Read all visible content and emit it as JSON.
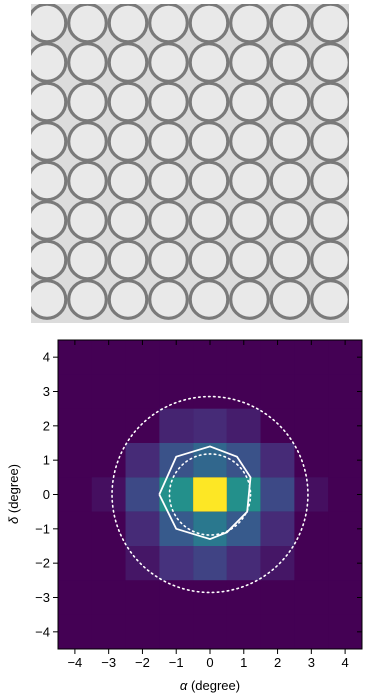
{
  "image": {
    "description_colors": {
      "background": "#dcdcdc",
      "ring": "#7a7a7a",
      "fill": "#e9e9e9"
    },
    "grid": {
      "rows": 8,
      "cols": 8
    }
  },
  "chart_data": {
    "type": "heatmap",
    "xlabel_symbol": "α",
    "xlabel_unit": " (degree)",
    "ylabel_symbol": "δ",
    "ylabel_unit": " (degree)",
    "xlim": [
      -4.5,
      4.5
    ],
    "ylim": [
      -4.5,
      4.5
    ],
    "xticks": [
      -4,
      -3,
      -2,
      -1,
      0,
      1,
      2,
      3,
      4
    ],
    "yticks": [
      -4,
      -3,
      -2,
      -1,
      0,
      1,
      2,
      3,
      4
    ],
    "cell_size": 1,
    "cell_centers": [
      -4,
      -3,
      -2,
      -1,
      0,
      1,
      2,
      3,
      4
    ],
    "values_rows_top_to_bottom": [
      [
        0,
        0,
        0,
        0,
        0,
        0,
        0,
        0,
        0
      ],
      [
        0,
        0,
        0,
        0,
        0,
        0,
        0,
        0,
        0
      ],
      [
        0,
        0,
        0,
        0.1,
        0.12,
        0.08,
        0,
        0,
        0
      ],
      [
        0,
        0,
        0.12,
        0.25,
        0.33,
        0.25,
        0.12,
        0,
        0
      ],
      [
        0,
        0.04,
        0.22,
        0.5,
        1.0,
        0.5,
        0.22,
        0.04,
        0
      ],
      [
        0,
        0,
        0.12,
        0.28,
        0.4,
        0.28,
        0.12,
        0,
        0
      ],
      [
        0,
        0,
        0.06,
        0.14,
        0.2,
        0.12,
        0.06,
        0,
        0
      ],
      [
        0,
        0,
        0,
        0,
        0,
        0,
        0,
        0,
        0
      ],
      [
        0,
        0,
        0,
        0,
        0,
        0,
        0,
        0,
        0
      ]
    ],
    "colormap": [
      "#440154",
      "#46337e",
      "#365c8d",
      "#277f8e",
      "#1fa187",
      "#4ac16d",
      "#a0da39",
      "#fde725"
    ],
    "overlays": {
      "outer_circle": {
        "cx": 0,
        "cy": 0,
        "r": 2.9,
        "style": "dotted",
        "color": "#ffffff"
      },
      "inner_circle": {
        "cx": 0,
        "cy": 0,
        "r": 1.2,
        "style": "dotted",
        "color": "#ffffff"
      },
      "contour": {
        "style": "solid",
        "color": "#ffffff",
        "points": [
          [
            -1.5,
            0.0
          ],
          [
            -1.0,
            1.1
          ],
          [
            0.0,
            1.4
          ],
          [
            0.8,
            1.1
          ],
          [
            1.2,
            0.5
          ],
          [
            1.1,
            -0.5
          ],
          [
            0.5,
            -1.1
          ],
          [
            0.0,
            -1.3
          ],
          [
            -1.0,
            -1.0
          ],
          [
            -1.5,
            0.0
          ]
        ]
      }
    }
  }
}
